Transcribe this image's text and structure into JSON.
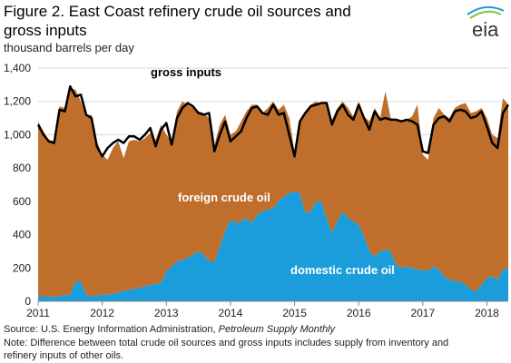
{
  "chart_data": {
    "type": "stacked-area-line",
    "title_lines": [
      "Figure 2. East Coast refinery crude oil sources and",
      "gross inputs"
    ],
    "subtitle": "thousand barrels per day",
    "logo": "eia",
    "categories": [
      "2011",
      null,
      null,
      null,
      null,
      null,
      null,
      null,
      null,
      null,
      null,
      null,
      "2012",
      null,
      null,
      null,
      null,
      null,
      null,
      null,
      null,
      null,
      null,
      null,
      "2013",
      null,
      null,
      null,
      null,
      null,
      null,
      null,
      null,
      null,
      null,
      null,
      "2014",
      null,
      null,
      null,
      null,
      null,
      null,
      null,
      null,
      null,
      null,
      null,
      "2015",
      null,
      null,
      null,
      null,
      null,
      null,
      null,
      null,
      null,
      null,
      null,
      "2016",
      null,
      null,
      null,
      null,
      null,
      null,
      null,
      null,
      null,
      null,
      null,
      "2017",
      null,
      null,
      null,
      null,
      null,
      null,
      null,
      null,
      null,
      null,
      null,
      "2018",
      null,
      null,
      null,
      null
    ],
    "ylim": [
      0,
      1400
    ],
    "yticks": [
      0,
      200,
      400,
      600,
      800,
      {
        "value": 1000,
        "label": "1,000"
      },
      {
        "value": 1200,
        "label": "1,200"
      },
      {
        "value": 1400,
        "label": "1,400"
      }
    ],
    "grid": true,
    "series": [
      {
        "name": "domestic crude oil",
        "kind": "area",
        "color": "#1b9ddb",
        "label_color": "#ffffff",
        "values": [
          30,
          30,
          30,
          25,
          30,
          35,
          40,
          120,
          120,
          40,
          30,
          35,
          40,
          40,
          45,
          55,
          60,
          70,
          75,
          80,
          90,
          100,
          105,
          110,
          180,
          210,
          240,
          250,
          260,
          280,
          300,
          280,
          240,
          240,
          330,
          420,
          490,
          470,
          480,
          500,
          470,
          520,
          540,
          550,
          560,
          600,
          630,
          650,
          660,
          650,
          530,
          540,
          600,
          600,
          500,
          410,
          480,
          540,
          500,
          480,
          460,
          390,
          300,
          270,
          300,
          310,
          300,
          220,
          200,
          210,
          200,
          190,
          190,
          180,
          210,
          190,
          150,
          130,
          120,
          120,
          100,
          70,
          60,
          100,
          140,
          150,
          130,
          190,
          200
        ]
      },
      {
        "name": "foreign crude oil",
        "kind": "area",
        "color": "#bf6f2b",
        "label_color": "#ffffff",
        "values": [
          1050,
          990,
          940,
          935,
          1140,
          1125,
          1240,
          1150,
          1080,
          1070,
          1090,
          925,
          840,
          810,
          875,
          905,
          800,
          890,
          895,
          880,
          890,
          910,
          865,
          950,
          820,
          750,
          900,
          950,
          920,
          880,
          840,
          850,
          860,
          700,
          730,
          700,
          510,
          550,
          600,
          640,
          710,
          660,
          590,
          610,
          640,
          550,
          550,
          450,
          240,
          410,
          610,
          640,
          600,
          580,
          700,
          680,
          680,
          660,
          660,
          630,
          740,
          720,
          780,
          890,
          800,
          950,
          800,
          870,
          880,
          880,
          910,
          990,
          690,
          670,
          890,
          970,
          970,
          970,
          1040,
          1060,
          1090,
          1060,
          1080,
          1060,
          960,
          850,
          850,
          1030,
          980
        ]
      },
      {
        "name": "gross inputs",
        "kind": "line",
        "color": "#000000",
        "label_color": "#000000",
        "values": [
          1060,
          1000,
          960,
          950,
          1150,
          1140,
          1290,
          1230,
          1240,
          1120,
          1100,
          930,
          870,
          920,
          950,
          970,
          950,
          990,
          990,
          970,
          1000,
          1040,
          930,
          1030,
          1070,
          940,
          1100,
          1160,
          1190,
          1170,
          1130,
          1120,
          1130,
          900,
          1000,
          1080,
          960,
          990,
          1020,
          1100,
          1160,
          1170,
          1130,
          1120,
          1180,
          1120,
          1130,
          1000,
          870,
          1080,
          1130,
          1170,
          1180,
          1190,
          1190,
          1060,
          1140,
          1180,
          1120,
          1090,
          1180,
          1100,
          1030,
          1140,
          1090,
          1100,
          1090,
          1090,
          1080,
          1090,
          1080,
          1060,
          900,
          890,
          1060,
          1100,
          1110,
          1080,
          1140,
          1150,
          1140,
          1100,
          1110,
          1140,
          1050,
          950,
          920,
          1130,
          1180
        ]
      }
    ],
    "source": {
      "text": "Source: U.S. Energy Information Administration, ",
      "publication": "Petroleum Supply Monthly"
    },
    "note_lines": [
      "Note: Difference between total crude oil sources and gross inputs includes supply from inventory and",
      "refinery inputs of other oils."
    ]
  }
}
